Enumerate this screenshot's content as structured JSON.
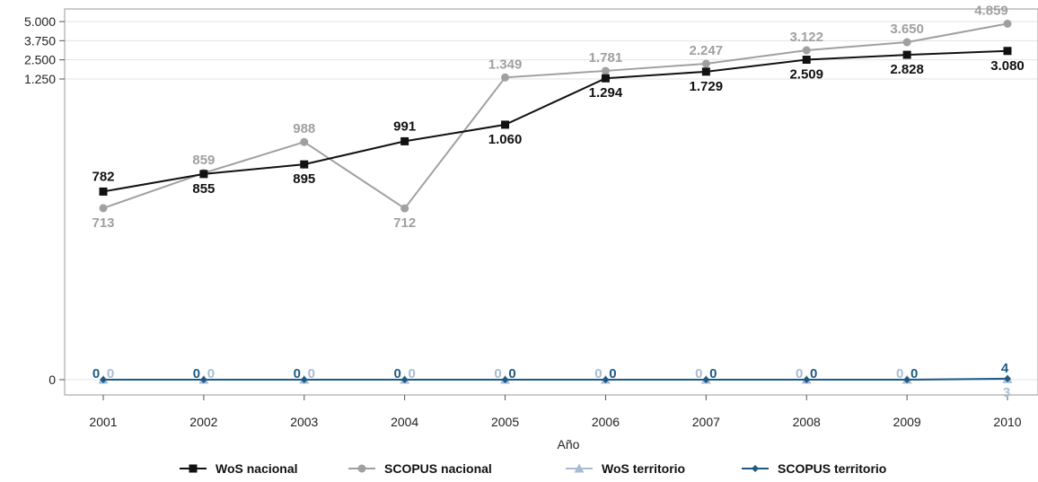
{
  "chart_data": {
    "type": "line",
    "xlabel": "Año",
    "ylabel": "",
    "x": [
      "2001",
      "2002",
      "2003",
      "2004",
      "2005",
      "2006",
      "2007",
      "2008",
      "2009",
      "2010"
    ],
    "y_ticks": [
      {
        "value": 0,
        "label": "0"
      },
      {
        "value": 1250,
        "label": "1.250"
      },
      {
        "value": 2500,
        "label": "2.500"
      },
      {
        "value": 3750,
        "label": "3.750"
      },
      {
        "value": 5000,
        "label": "5.000"
      }
    ],
    "y_scale": "piecewise (0 to 1.250 expanded for small values, 1.250 to 5.000 compressed)",
    "ylim": [
      0,
      5000
    ],
    "grid": "horizontal",
    "legend_position": "bottom",
    "series": [
      {
        "name": "WoS nacional",
        "color": "#111111",
        "marker": "square",
        "values": [
          782,
          855,
          895,
          991,
          1060,
          1294,
          1729,
          2509,
          2828,
          3080
        ],
        "labels": [
          "782",
          "855",
          "895",
          "991",
          "1.060",
          "1.294",
          "1.729",
          "2.509",
          "2.828",
          "3.080"
        ]
      },
      {
        "name": "SCOPUS nacional",
        "color": "#a0a0a0",
        "marker": "circle",
        "values": [
          713,
          859,
          988,
          712,
          1349,
          1781,
          2247,
          3122,
          3650,
          4859
        ],
        "labels": [
          "713",
          "859",
          "988",
          "712",
          "1.349",
          "1.781",
          "2.247",
          "3.122",
          "3.650",
          "4.859"
        ]
      },
      {
        "name": "WoS territorio",
        "color": "#a9bcd3",
        "marker": "triangle",
        "values": [
          0,
          0,
          0,
          0,
          0,
          0,
          0,
          0,
          0,
          3
        ],
        "labels": [
          "0",
          "0",
          "0",
          "0",
          "0",
          "0",
          "0",
          "0",
          "0",
          "3"
        ]
      },
      {
        "name": "SCOPUS territorio",
        "color": "#1f5a85",
        "marker": "diamond",
        "values": [
          0,
          0,
          0,
          0,
          0,
          0,
          0,
          0,
          0,
          4
        ],
        "labels": [
          "0",
          "0",
          "0",
          "0",
          "0",
          "0",
          "0",
          "0",
          "0",
          "4"
        ]
      }
    ]
  }
}
